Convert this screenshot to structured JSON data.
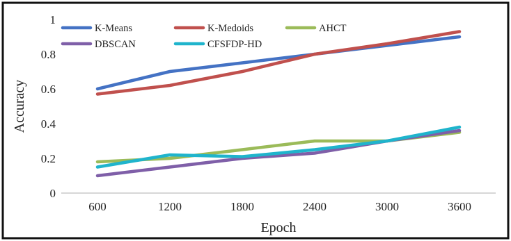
{
  "chart_data": {
    "type": "line",
    "title": "",
    "xlabel": "Epoch",
    "ylabel": "Accuracy",
    "x": [
      600,
      1200,
      1800,
      2400,
      3000,
      3600
    ],
    "x_tick_labels": [
      "600",
      "1200",
      "1800",
      "2400",
      "3000",
      "3600"
    ],
    "ylim": [
      0,
      1
    ],
    "y_ticks": [
      0,
      0.2,
      0.4,
      0.6,
      0.8,
      1
    ],
    "y_tick_labels": [
      "0",
      "0.2",
      "0.4",
      "0.6",
      "0.8",
      "1"
    ],
    "grid": false,
    "legend_position": "top-left",
    "series": [
      {
        "name": "K-Means",
        "color": "#4472c4",
        "values": [
          0.6,
          0.7,
          0.75,
          0.8,
          0.85,
          0.9
        ]
      },
      {
        "name": "K-Medoids",
        "color": "#c0504d",
        "values": [
          0.57,
          0.62,
          0.7,
          0.8,
          0.86,
          0.93
        ]
      },
      {
        "name": "AHCT",
        "color": "#9bbb59",
        "values": [
          0.18,
          0.2,
          0.25,
          0.3,
          0.3,
          0.35
        ]
      },
      {
        "name": "DBSCAN",
        "color": "#7f5fa8",
        "values": [
          0.1,
          0.15,
          0.2,
          0.23,
          0.3,
          0.36
        ]
      },
      {
        "name": "CFSFDP-HD",
        "color": "#1fb4cc",
        "values": [
          0.15,
          0.22,
          0.21,
          0.25,
          0.3,
          0.38
        ]
      }
    ]
  }
}
